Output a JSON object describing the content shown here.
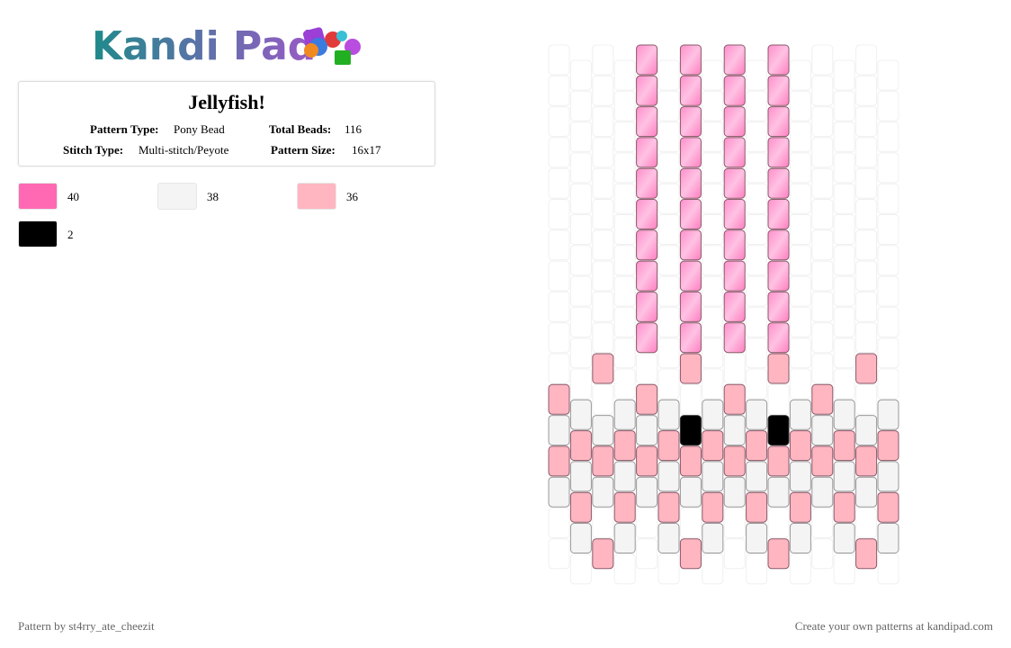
{
  "header": {
    "logo": "Kandi Pad"
  },
  "pattern": {
    "title": "Jellyfish!",
    "pattern_type_label": "Pattern Type:",
    "pattern_type": "Pony Bead",
    "total_beads_label": "Total Beads:",
    "total_beads": 116,
    "stitch_type_label": "Stitch Type:",
    "stitch_type": "Multi-stitch/Peyote",
    "pattern_size_label": "Pattern Size:",
    "pattern_size": "16x17"
  },
  "colors": [
    {
      "color": "#ff69b4",
      "count": 40
    },
    {
      "color": "#f4f4f4",
      "count": 38
    },
    {
      "color": "#ffb6c1",
      "count": 36
    },
    {
      "color": "#000000",
      "count": 2
    }
  ],
  "footer": {
    "left": "Pattern by st4rry_ate_cheezit",
    "right": "Create your own patterns at kandipad.com"
  }
}
